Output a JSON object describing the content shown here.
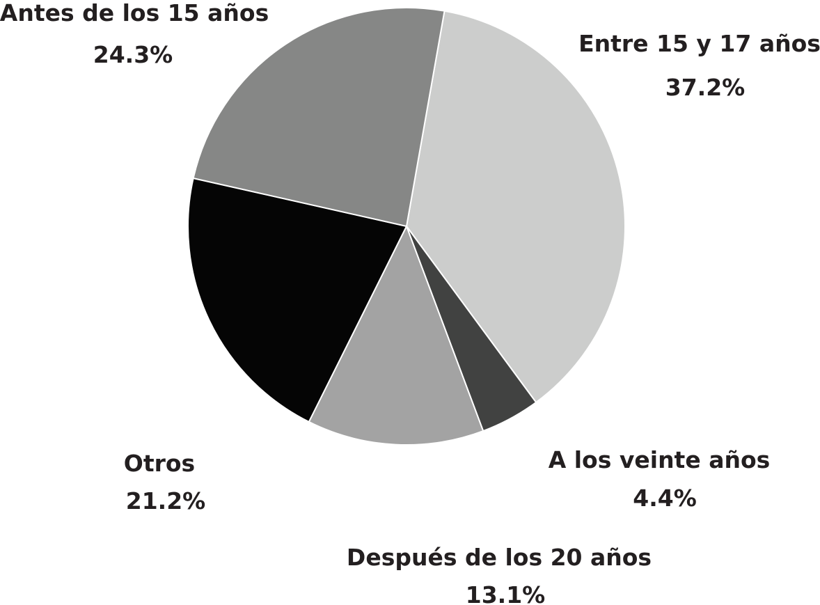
{
  "chart_data": {
    "type": "pie",
    "title": "",
    "slices": [
      {
        "label": "Entre 15 y 17 años",
        "value": 37.2,
        "value_label": "37.2%",
        "color": "#cccdcc"
      },
      {
        "label": "A los veinte años",
        "value": 4.4,
        "value_label": "4.4%",
        "color": "#414241"
      },
      {
        "label": "Después de los 20 años",
        "value": 13.1,
        "value_label": "13.1%",
        "color": "#a3a3a3"
      },
      {
        "label": "Otros",
        "value": 21.2,
        "value_label": "21.2%",
        "color": "#050505"
      },
      {
        "label": "Antes de los 15 años",
        "value": 24.3,
        "value_label": "24.3%",
        "color": "#868786"
      }
    ],
    "start_direction": "just right of 12 o'clock",
    "order": "clockwise",
    "legend": "none; labels placed next to slices"
  }
}
